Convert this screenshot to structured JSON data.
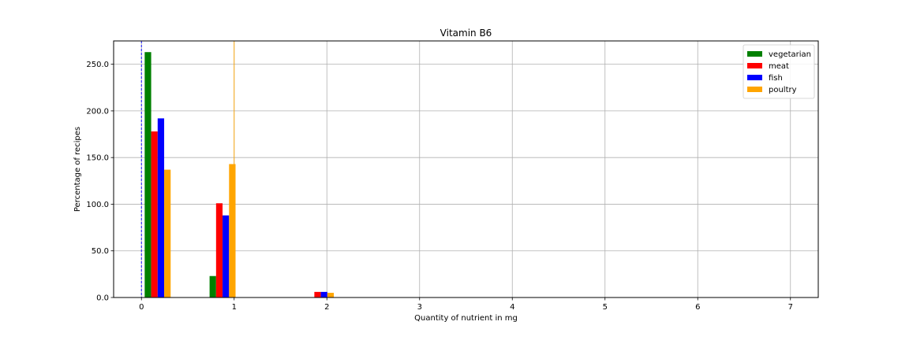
{
  "chart_data": {
    "type": "bar",
    "title": "Vitamin B6",
    "xlabel": "Quantity of nutrient in mg",
    "ylabel": "Percentage of recipes",
    "xlim": [
      -0.3,
      7.3
    ],
    "ylim": [
      0,
      275
    ],
    "xticks": [
      0,
      1,
      2,
      3,
      4,
      5,
      6,
      7
    ],
    "xtick_labels": [
      "0",
      "1",
      "2",
      "3",
      "4",
      "5",
      "6",
      "7"
    ],
    "yticks": [
      0,
      50,
      100,
      150,
      200,
      250
    ],
    "ytick_labels": [
      "0.0",
      "50.0",
      "100.0",
      "150.0",
      "200.0",
      "250.0"
    ],
    "grid": true,
    "legend": "top-right",
    "series": [
      {
        "name": "vegetarian",
        "color": "#008000",
        "x": [
          0.07,
          0.77
        ],
        "values": [
          263,
          23
        ]
      },
      {
        "name": "meat",
        "color": "#ff0000",
        "x": [
          0.14,
          0.84,
          1.9
        ],
        "values": [
          178,
          101,
          6
        ]
      },
      {
        "name": "fish",
        "color": "#0000ff",
        "x": [
          0.21,
          0.91,
          1.97
        ],
        "values": [
          192,
          88,
          6
        ]
      },
      {
        "name": "poultry",
        "color": "#ffa500",
        "x": [
          0.28,
          0.98,
          2.04
        ],
        "values": [
          137,
          143,
          5
        ]
      }
    ],
    "bar_width": 0.07,
    "vlines": [
      {
        "x": 0.0,
        "color": "#0000ff",
        "style": "dashed"
      },
      {
        "x": 1.0,
        "color": "#ffa500",
        "style": "solid"
      }
    ]
  }
}
